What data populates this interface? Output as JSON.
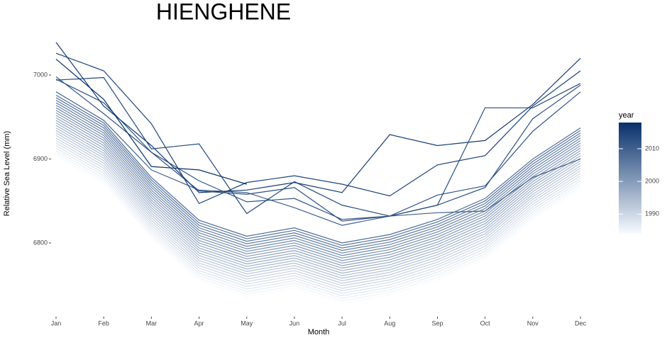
{
  "chart_data": {
    "type": "line",
    "title": "HIENGHENE",
    "x_label": "Month",
    "y_label": "Relative Sea Level (mm)",
    "categories": [
      "Jan",
      "Feb",
      "Mar",
      "Apr",
      "May",
      "Jun",
      "Jul",
      "Aug",
      "Sep",
      "Oct",
      "Nov",
      "Dec"
    ],
    "ylim": [
      6722,
      7043
    ],
    "yticks": [
      6800,
      6900,
      7000
    ],
    "grid": false,
    "legend": {
      "title": "year",
      "position": "right",
      "low_color": "#f7fbff",
      "high_color": "#08306b",
      "lim": [
        1984,
        2018
      ],
      "ticks": [
        1990,
        2000,
        2010
      ]
    },
    "series": [
      {
        "year": 1984,
        "values": [
          6904,
          6871,
          6806,
          6755,
          6736,
          6746,
          6728,
          6738,
          6756,
          6781,
          6828,
          6865
        ]
      },
      {
        "year": 1985,
        "values": [
          6907,
          6874,
          6809,
          6758,
          6739,
          6749,
          6731,
          6741,
          6759,
          6784,
          6831,
          6868
        ]
      },
      {
        "year": 1986,
        "values": [
          6910,
          6877,
          6812,
          6761,
          6742,
          6752,
          6734,
          6744,
          6762,
          6787,
          6834,
          6871
        ]
      },
      {
        "year": 1987,
        "values": [
          6913,
          6880,
          6815,
          6764,
          6745,
          6755,
          6737,
          6747,
          6765,
          6790,
          6837,
          6874
        ]
      },
      {
        "year": 1988,
        "values": [
          6916,
          6883,
          6818,
          6767,
          6748,
          6758,
          6740,
          6750,
          6768,
          6793,
          6840,
          6877
        ]
      },
      {
        "year": 1989,
        "values": [
          6919,
          6886,
          6821,
          6770,
          6751,
          6761,
          6743,
          6753,
          6771,
          6796,
          6843,
          6880
        ]
      },
      {
        "year": 1990,
        "values": [
          6922,
          6889,
          6824,
          6773,
          6754,
          6764,
          6746,
          6756,
          6774,
          6799,
          6846,
          6883
        ]
      },
      {
        "year": 1991,
        "values": [
          6925,
          6892,
          6827,
          6776,
          6757,
          6767,
          6749,
          6759,
          6777,
          6802,
          6849,
          6886
        ]
      },
      {
        "year": 1992,
        "values": [
          6928,
          6895,
          6830,
          6779,
          6760,
          6770,
          6752,
          6762,
          6780,
          6805,
          6852,
          6889
        ]
      },
      {
        "year": 1993,
        "values": [
          6931,
          6898,
          6833,
          6782,
          6763,
          6773,
          6755,
          6765,
          6783,
          6808,
          6855,
          6892
        ]
      },
      {
        "year": 1994,
        "values": [
          6934,
          6901,
          6836,
          6785,
          6766,
          6776,
          6758,
          6768,
          6786,
          6811,
          6858,
          6895
        ]
      },
      {
        "year": 1995,
        "values": [
          6937,
          6904,
          6839,
          6788,
          6769,
          6779,
          6761,
          6771,
          6789,
          6814,
          6861,
          6898
        ]
      },
      {
        "year": 1996,
        "values": [
          6940,
          6907,
          6842,
          6791,
          6772,
          6782,
          6764,
          6774,
          6792,
          6817,
          6864,
          6901
        ]
      },
      {
        "year": 1997,
        "values": [
          6943,
          6910,
          6845,
          6794,
          6775,
          6785,
          6767,
          6777,
          6795,
          6820,
          6867,
          6904
        ]
      },
      {
        "year": 1998,
        "values": [
          6946,
          6913,
          6848,
          6797,
          6778,
          6788,
          6770,
          6780,
          6798,
          6823,
          6870,
          6907
        ]
      },
      {
        "year": 1999,
        "values": [
          6949,
          6916,
          6851,
          6800,
          6781,
          6791,
          6773,
          6783,
          6801,
          6826,
          6873,
          6910
        ]
      },
      {
        "year": 2000,
        "values": [
          6952,
          6919,
          6854,
          6803,
          6784,
          6794,
          6776,
          6786,
          6804,
          6829,
          6876,
          6913
        ]
      },
      {
        "year": 2001,
        "values": [
          6955,
          6922,
          6857,
          6806,
          6787,
          6797,
          6779,
          6789,
          6807,
          6832,
          6879,
          6916
        ]
      },
      {
        "year": 2002,
        "values": [
          6958,
          6925,
          6860,
          6809,
          6790,
          6800,
          6782,
          6792,
          6810,
          6835,
          6882,
          6919
        ]
      },
      {
        "year": 2003,
        "values": [
          6961,
          6928,
          6863,
          6812,
          6793,
          6803,
          6785,
          6795,
          6813,
          6838,
          6885,
          6922
        ]
      },
      {
        "year": 2004,
        "values": [
          6964,
          6931,
          6866,
          6815,
          6796,
          6806,
          6788,
          6798,
          6816,
          6841,
          6888,
          6925
        ]
      },
      {
        "year": 2005,
        "values": [
          6967,
          6934,
          6869,
          6818,
          6799,
          6809,
          6791,
          6801,
          6819,
          6844,
          6891,
          6928
        ]
      },
      {
        "year": 2006,
        "values": [
          6970,
          6937,
          6872,
          6821,
          6802,
          6812,
          6794,
          6804,
          6822,
          6847,
          6894,
          6931
        ]
      },
      {
        "year": 2007,
        "values": [
          6973,
          6940,
          6875,
          6824,
          6805,
          6815,
          6797,
          6807,
          6825,
          6850,
          6897,
          6934
        ]
      },
      {
        "year": 2008,
        "values": [
          6976,
          6943,
          6878,
          6827,
          6808,
          6818,
          6800,
          6810,
          6828,
          6853,
          6900,
          6937
        ]
      },
      {
        "year": 2010,
        "values": [
          6980,
          6946,
          6887,
          6863,
          6860,
          6842,
          6821,
          6832,
          6836,
          6838,
          6878,
          6900
        ]
      },
      {
        "year": 2012,
        "values": [
          6998,
          6954,
          6908,
          6874,
          6849,
          6853,
          6828,
          6832,
          6857,
          6868,
          6933,
          6980
        ]
      },
      {
        "year": 2013,
        "values": [
          6995,
          6967,
          6908,
          6862,
          6858,
          6866,
          6826,
          6832,
          6845,
          6866,
          6948,
          6988
        ]
      },
      {
        "year": 2014,
        "values": [
          6994,
          6997,
          6912,
          6918,
          6835,
          6873,
          6845,
          6832,
          6845,
          6961,
          6961,
          6990
        ]
      },
      {
        "year": 2015,
        "values": [
          7026,
          7005,
          6942,
          6847,
          6872,
          6880,
          6870,
          6856,
          6893,
          6904,
          6963,
          7005
        ]
      },
      {
        "year": 2016,
        "values": [
          7039,
          6963,
          6916,
          6860,
          6863,
          6872,
          6860,
          6929,
          6916,
          6922,
          6965,
          7020
        ]
      },
      {
        "year": 2018,
        "values": [
          7019,
          6971,
          6891,
          6887,
          6870,
          null,
          null,
          null,
          null,
          null,
          null,
          null
        ]
      }
    ]
  }
}
